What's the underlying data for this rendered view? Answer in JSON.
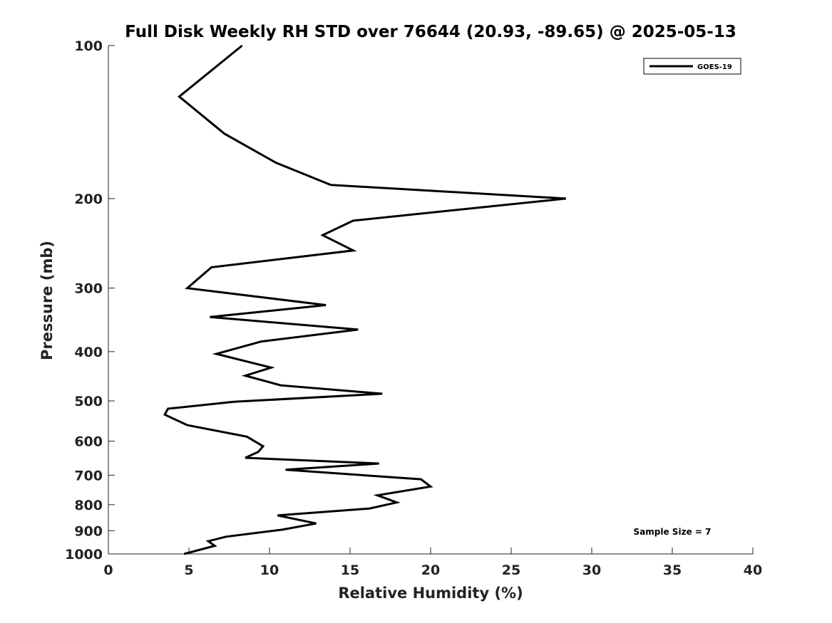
{
  "chart_data": {
    "type": "line",
    "title": "Full Disk Weekly RH STD over 76644 (20.93, -89.65) @ 2025-05-13",
    "xlabel": "Relative Humidity (%)",
    "ylabel": "Pressure (mb)",
    "xlim": [
      0,
      40
    ],
    "ylim": [
      100,
      1000
    ],
    "y_scale": "log",
    "y_reversed": true,
    "x_ticks": [
      0,
      5,
      10,
      15,
      20,
      25,
      30,
      35,
      40
    ],
    "y_ticks": [
      100,
      200,
      300,
      400,
      500,
      600,
      700,
      800,
      900,
      1000
    ],
    "grid": false,
    "legend_position": "top-right",
    "annotation": "Sample Size = 7",
    "line_color": "#000000",
    "series": [
      {
        "name": "GOES-19",
        "points": [
          [
            8.3,
            100
          ],
          [
            4.4,
            126
          ],
          [
            7.2,
            149
          ],
          [
            10.4,
            170
          ],
          [
            13.8,
            188
          ],
          [
            28.4,
            200
          ],
          [
            15.2,
            221
          ],
          [
            13.3,
            236
          ],
          [
            15.2,
            253
          ],
          [
            6.4,
            273
          ],
          [
            4.9,
            300
          ],
          [
            13.5,
            324
          ],
          [
            6.3,
            342
          ],
          [
            15.5,
            362
          ],
          [
            9.5,
            382
          ],
          [
            6.7,
            404
          ],
          [
            10.1,
            430
          ],
          [
            8.5,
            446
          ],
          [
            10.7,
            466
          ],
          [
            17.0,
            484
          ],
          [
            7.8,
            502
          ],
          [
            3.7,
            518
          ],
          [
            3.5,
            532
          ],
          [
            4.9,
            558
          ],
          [
            8.6,
            588
          ],
          [
            9.6,
            614
          ],
          [
            9.3,
            630
          ],
          [
            8.5,
            647
          ],
          [
            16.8,
            664
          ],
          [
            11.0,
            683
          ],
          [
            19.4,
            713
          ],
          [
            20.0,
            737
          ],
          [
            16.7,
            767
          ],
          [
            17.9,
            792
          ],
          [
            16.2,
            814
          ],
          [
            10.5,
            840
          ],
          [
            12.9,
            871
          ],
          [
            10.8,
            896
          ],
          [
            7.3,
            925
          ],
          [
            6.2,
            944
          ],
          [
            6.6,
            964
          ],
          [
            4.7,
            1000
          ]
        ]
      }
    ]
  }
}
